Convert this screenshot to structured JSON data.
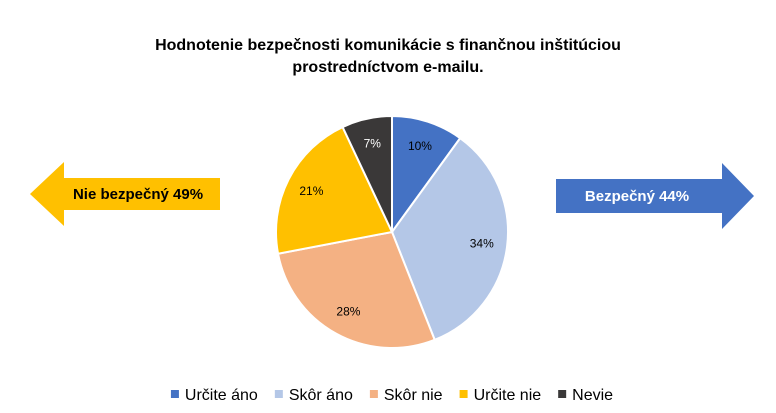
{
  "chart_data": {
    "type": "pie",
    "title_lines": [
      "Hodnotenie bezpečnosti komunikácie s finančnou inštitúciou",
      "prostredníctvom e-mailu."
    ],
    "slices": [
      {
        "label": "Určite áno",
        "value": 10,
        "display": "10%",
        "color": "#4472C4",
        "label_color": "#000000"
      },
      {
        "label": "Skôr áno",
        "value": 34,
        "display": "34%",
        "color": "#B4C7E7",
        "label_color": "#000000"
      },
      {
        "label": "Skôr nie",
        "value": 28,
        "display": "28%",
        "color": "#F4B183",
        "label_color": "#000000"
      },
      {
        "label": "Určite nie",
        "value": 21,
        "display": "21%",
        "color": "#FFC000",
        "label_color": "#000000"
      },
      {
        "label": "Nevie",
        "value": 7,
        "display": "7%",
        "color": "#3A3838",
        "label_color": "#FFFFFF"
      }
    ],
    "legend_position": "bottom",
    "annotations": {
      "left_arrow": {
        "text": "Nie bezpečný 49%",
        "color": "#FFC000",
        "text_color": "#000000"
      },
      "right_arrow": {
        "text": "Bezpečný 44%",
        "color": "#4472C4",
        "text_color": "#FFFFFF"
      }
    }
  }
}
